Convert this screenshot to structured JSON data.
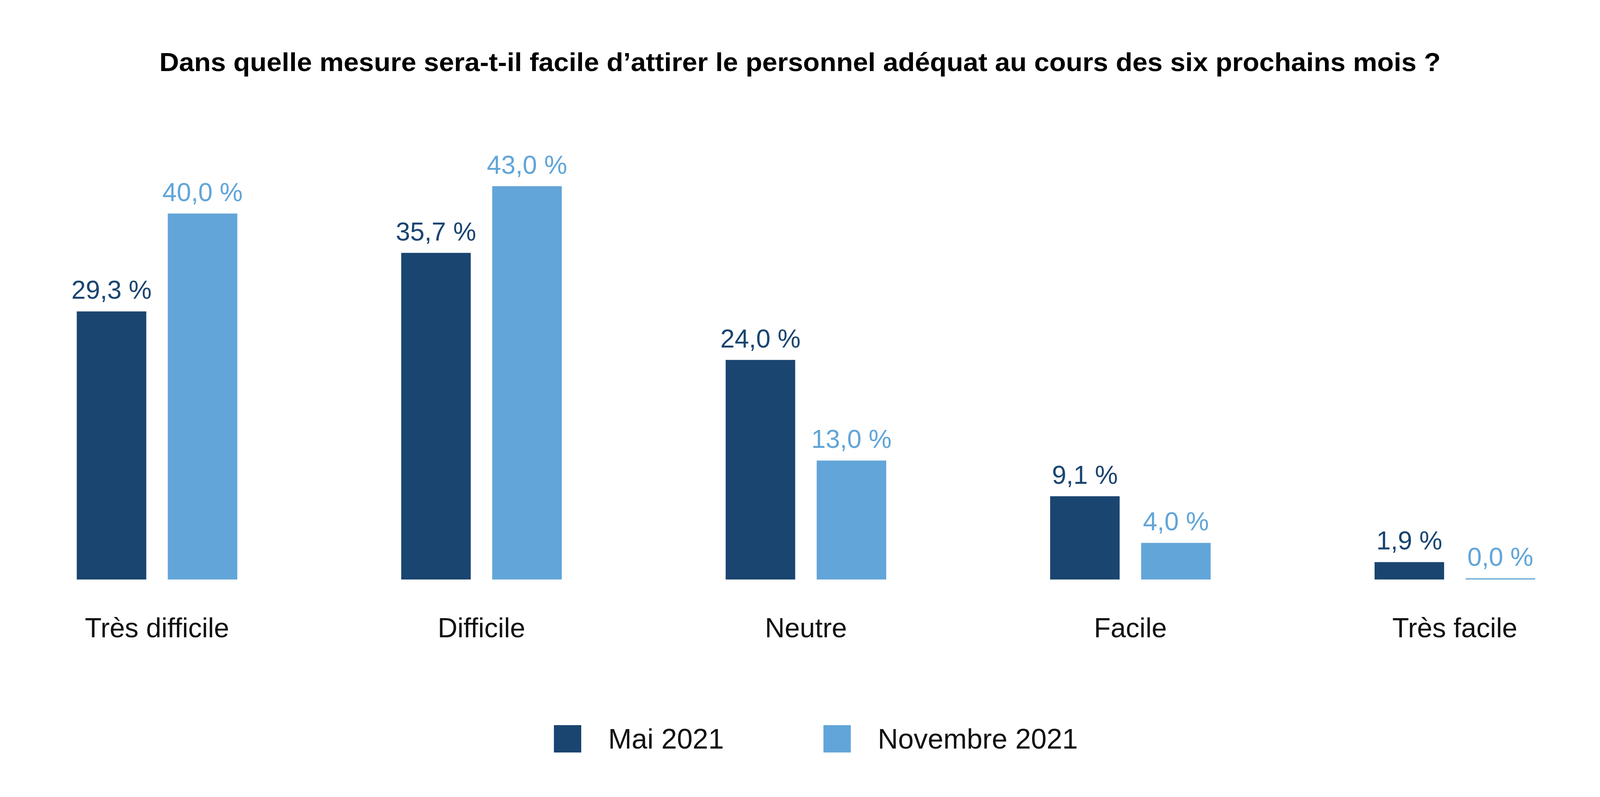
{
  "chart_data": {
    "type": "bar",
    "title": "Dans quelle mesure sera-t-il facile d’attirer le personnel adéquat au cours des six prochains mois ?",
    "categories": [
      "Très difficile",
      "Difficile",
      "Neutre",
      "Facile",
      "Très facile"
    ],
    "series": [
      {
        "name": "Mai 2021",
        "color": "#1a4570",
        "values": [
          29.3,
          35.7,
          24.0,
          9.1,
          1.9
        ],
        "value_labels": [
          "29,3 %",
          "35,7 %",
          "24,0 %",
          "9,1 %",
          "1,9 %"
        ]
      },
      {
        "name": "Novembre 2021",
        "color": "#62a5d8",
        "values": [
          40.0,
          43.0,
          13.0,
          4.0,
          0.0
        ],
        "value_labels": [
          "40,0 %",
          "43,0 %",
          "13,0 %",
          "4,0 %",
          "0,0 %"
        ]
      }
    ],
    "ylim": [
      0,
      43
    ],
    "data_labels": true,
    "tick_labels": "x",
    "grid": false,
    "legend": "bottom"
  }
}
